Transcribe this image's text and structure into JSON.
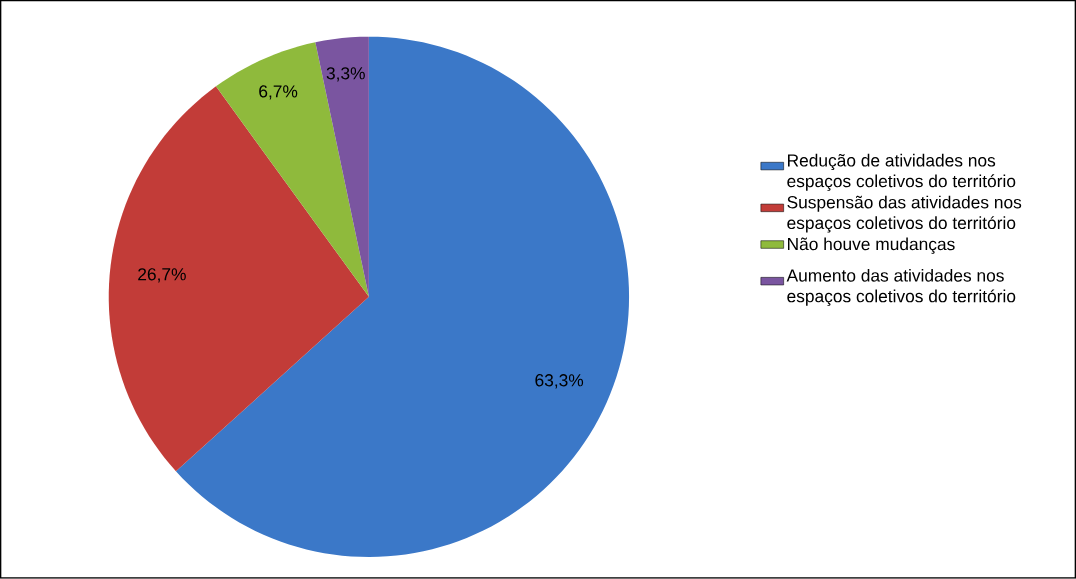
{
  "chart_data": {
    "type": "pie",
    "categories": [
      "Redução de atividades nos espaços coletivos do território",
      "Suspensão das atividades nos espaços coletivos do território",
      "Não houve mudanças",
      "Aumento das atividades nos espaços coletivos do território"
    ],
    "values": [
      63.3,
      26.7,
      6.7,
      3.3
    ],
    "value_labels": [
      "63,3%",
      "26,7%",
      "6,7%",
      "3,3%"
    ],
    "colors": [
      "#3b78c8",
      "#c23c38",
      "#8fba3c",
      "#7a55a0"
    ],
    "legend": "right"
  }
}
